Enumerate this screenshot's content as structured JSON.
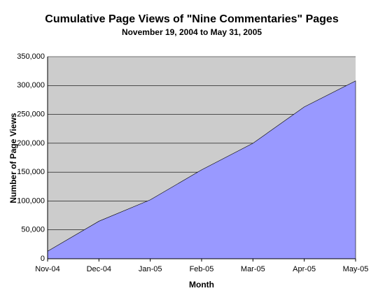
{
  "chart_data": {
    "type": "area",
    "title": "Cumulative Page Views of \"Nine Commentaries\" Pages",
    "subtitle": "November 19, 2004 to May 31, 2005",
    "x_label": "Month",
    "y_label": "Number of Page Views",
    "categories": [
      "Nov-04",
      "Dec-04",
      "Jan-05",
      "Feb-05",
      "Mar-05",
      "Apr-05",
      "May-05"
    ],
    "values": [
      13000,
      65000,
      102000,
      154000,
      200000,
      263000,
      308000
    ],
    "color": "#9999ff",
    "background": "#cccccc",
    "ylim": [
      0,
      350000
    ],
    "yticks": [
      0,
      {
        "value": 50000,
        "label": "50,000"
      },
      {
        "value": 100000,
        "label": "100,000"
      },
      {
        "value": 150000,
        "label": "150,000"
      },
      {
        "value": 200000,
        "label": "200,000"
      },
      {
        "value": 250000,
        "label": "250,000"
      },
      {
        "value": 300000,
        "label": "300,000"
      },
      {
        "value": 350000,
        "label": "350,000"
      }
    ],
    "grid": true
  }
}
